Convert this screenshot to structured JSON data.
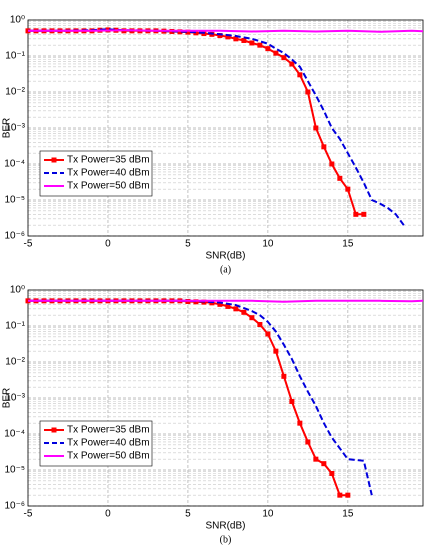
{
  "chart_data": [
    {
      "type": "line",
      "caption": "(a)",
      "x_label": "SNR(dB)",
      "y_label": "BER",
      "log_y": true,
      "grid": true,
      "legend": "lower left",
      "xlim": [
        -5,
        19.7
      ],
      "xticks": [
        -5,
        0,
        5,
        10,
        15
      ],
      "ylim": [
        1e-06,
        1
      ],
      "yticks": [
        {
          "value": 1e-06,
          "label": "10⁻⁶"
        },
        {
          "value": 1e-05,
          "label": "10⁻⁵"
        },
        {
          "value": 0.0001,
          "label": "10⁻⁴"
        },
        {
          "value": 0.001,
          "label": "10⁻³"
        },
        {
          "value": 0.01,
          "label": "10⁻²"
        },
        {
          "value": 0.1,
          "label": "10⁻¹"
        },
        {
          "value": 1,
          "label": "10⁰"
        }
      ],
      "series": [
        {
          "name": "Tx Power=35 dBm",
          "color": "#ff0000",
          "linestyle": "solid",
          "marker": "square",
          "x": [
            -5,
            -4.5,
            -4,
            -3.5,
            -3,
            -2.5,
            -2,
            -1.5,
            -1,
            -0.5,
            0,
            0.5,
            1,
            1.5,
            2,
            2.5,
            3,
            3.5,
            4,
            4.5,
            5,
            5.5,
            6,
            6.5,
            7,
            7.5,
            8,
            8.5,
            9,
            9.5,
            10,
            10.5,
            11,
            11.5,
            12,
            12.5,
            13,
            13.5,
            14,
            14.5,
            15,
            15.5,
            16
          ],
          "values": [
            0.5,
            0.5,
            0.5,
            0.5,
            0.5,
            0.5,
            0.5,
            0.5,
            0.5,
            0.52,
            0.53,
            0.52,
            0.5,
            0.5,
            0.5,
            0.5,
            0.5,
            0.49,
            0.48,
            0.47,
            0.46,
            0.44,
            0.42,
            0.4,
            0.37,
            0.34,
            0.3,
            0.27,
            0.23,
            0.2,
            0.16,
            0.12,
            0.09,
            0.06,
            0.03,
            0.01,
            0.001,
            0.0003,
            0.0001,
            4e-05,
            2e-05,
            4e-06,
            4e-06
          ]
        },
        {
          "name": "Tx Power=40 dBm",
          "color": "#0000dd",
          "linestyle": "dashed",
          "marker": "none",
          "x": [
            -5,
            -3,
            -1,
            0,
            1,
            3,
            5,
            6,
            7,
            8,
            9,
            10,
            10.5,
            11,
            11.5,
            12,
            12.5,
            13,
            13.5,
            14,
            14.5,
            15,
            15.5,
            16,
            16.5,
            17,
            17.5,
            18,
            18.5
          ],
          "values": [
            0.5,
            0.5,
            0.52,
            0.55,
            0.52,
            0.5,
            0.47,
            0.44,
            0.4,
            0.36,
            0.3,
            0.22,
            0.16,
            0.12,
            0.08,
            0.05,
            0.02,
            0.008,
            0.003,
            0.001,
            0.0005,
            0.0002,
            8e-05,
            3e-05,
            1e-05,
            8e-06,
            6e-06,
            4e-06,
            2e-06
          ]
        },
        {
          "name": "Tx Power=50 dBm",
          "color": "#ff00ff",
          "linestyle": "solid",
          "marker": "none",
          "x": [
            -5,
            -3,
            -1,
            1,
            3,
            5,
            7,
            9,
            11,
            13,
            15,
            17,
            19,
            19.7
          ],
          "values": [
            0.5,
            0.5,
            0.5,
            0.52,
            0.5,
            0.5,
            0.5,
            0.48,
            0.5,
            0.48,
            0.5,
            0.47,
            0.5,
            0.49
          ]
        }
      ]
    },
    {
      "type": "line",
      "caption": "(b)",
      "x_label": "SNR(dB)",
      "y_label": "BER",
      "log_y": true,
      "grid": true,
      "legend": "lower left",
      "xlim": [
        -5,
        19.7
      ],
      "xticks": [
        -5,
        0,
        5,
        10,
        15
      ],
      "ylim": [
        1e-06,
        1
      ],
      "yticks": [
        {
          "value": 1e-06,
          "label": "10⁻⁶"
        },
        {
          "value": 1e-05,
          "label": "10⁻⁵"
        },
        {
          "value": 0.0001,
          "label": "10⁻⁴"
        },
        {
          "value": 0.001,
          "label": "10⁻³"
        },
        {
          "value": 0.01,
          "label": "10⁻²"
        },
        {
          "value": 0.1,
          "label": "10⁻¹"
        },
        {
          "value": 1,
          "label": "10⁰"
        }
      ],
      "series": [
        {
          "name": "Tx Power=35 dBm",
          "color": "#ff0000",
          "linestyle": "solid",
          "marker": "square",
          "x": [
            -5,
            -4.5,
            -4,
            -3.5,
            -3,
            -2.5,
            -2,
            -1.5,
            -1,
            -0.5,
            0,
            0.5,
            1,
            1.5,
            2,
            2.5,
            3,
            3.5,
            4,
            4.5,
            5,
            5.5,
            6,
            6.5,
            7,
            7.5,
            8,
            8.5,
            9,
            9.5,
            10,
            10.5,
            11,
            11.5,
            12,
            12.5,
            13,
            13.5,
            14,
            14.5,
            15
          ],
          "values": [
            0.5,
            0.5,
            0.5,
            0.5,
            0.5,
            0.5,
            0.5,
            0.5,
            0.5,
            0.5,
            0.5,
            0.5,
            0.5,
            0.5,
            0.5,
            0.5,
            0.5,
            0.5,
            0.5,
            0.5,
            0.48,
            0.47,
            0.46,
            0.44,
            0.4,
            0.35,
            0.3,
            0.24,
            0.17,
            0.11,
            0.06,
            0.02,
            0.004,
            0.0008,
            0.0002,
            6e-05,
            2e-05,
            1.5e-05,
            8e-06,
            2e-06,
            2e-06
          ]
        },
        {
          "name": "Tx Power=40 dBm",
          "color": "#0000dd",
          "linestyle": "dashed",
          "marker": "none",
          "x": [
            -5,
            -3,
            -1,
            1,
            3,
            5,
            6,
            7,
            8,
            9,
            9.5,
            10,
            10.5,
            11,
            11.5,
            12,
            12.5,
            13,
            13.5,
            14,
            14.5,
            15,
            15.5,
            16,
            16.5
          ],
          "values": [
            0.5,
            0.5,
            0.5,
            0.5,
            0.5,
            0.5,
            0.48,
            0.45,
            0.38,
            0.26,
            0.2,
            0.13,
            0.07,
            0.03,
            0.012,
            0.004,
            0.0015,
            0.0006,
            0.0002,
            8e-05,
            4e-05,
            2e-05,
            1.9e-05,
            1.8e-05,
            2e-06
          ]
        },
        {
          "name": "Tx Power=50 dBm",
          "color": "#ff00ff",
          "linestyle": "solid",
          "marker": "none",
          "x": [
            -5,
            -3,
            -1,
            1,
            3,
            5,
            7,
            9,
            11,
            13,
            15,
            17,
            19,
            19.7
          ],
          "values": [
            0.5,
            0.5,
            0.5,
            0.5,
            0.5,
            0.5,
            0.5,
            0.5,
            0.47,
            0.5,
            0.5,
            0.5,
            0.49,
            0.5
          ]
        }
      ]
    }
  ]
}
